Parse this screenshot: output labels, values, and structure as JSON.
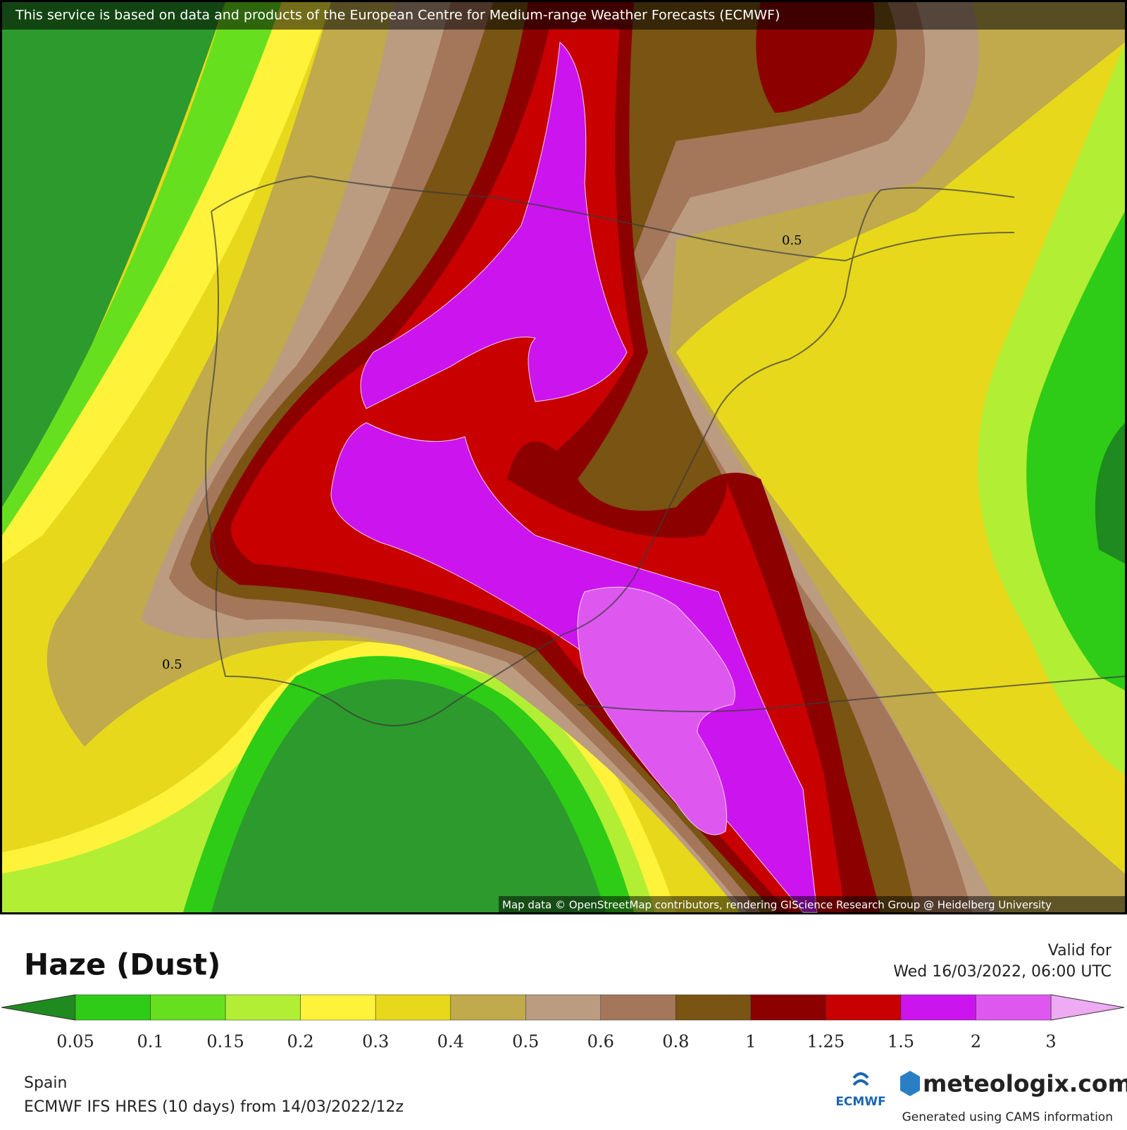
{
  "header": {
    "notice": "This service is based on data and products of the European Centre for Medium-range Weather Forecasts (ECMWF)"
  },
  "map": {
    "attribution": "Map data © OpenStreetMap contributors, rendering GIScience Research Group @ Heidelberg University",
    "contour_labels": [
      "0.5",
      "0.5"
    ]
  },
  "footer": {
    "title": "Haze (Dust)",
    "valid_label": "Valid for",
    "valid_time": "Wed 16/03/2022, 06:00 UTC",
    "region": "Spain",
    "model": "ECMWF IFS HRES (10 days) from 14/03/2022/12z",
    "ecmwf_logo": "ECMWF",
    "brand": "meteologix.com",
    "credit": "Generated using CAMS information"
  },
  "legend": {
    "low_color": "#1f8a1f",
    "high_color": "#eeaaf2",
    "colors": [
      "#2ecc16",
      "#66e01e",
      "#b2ee34",
      "#fff23a",
      "#e8d81c",
      "#c0aa4c",
      "#bb9c80",
      "#a4765a",
      "#7a5412",
      "#8c0000",
      "#c80000",
      "#cc14ee",
      "#de58f0"
    ],
    "labels": [
      "0.05",
      "0.1",
      "0.15",
      "0.2",
      "0.3",
      "0.4",
      "0.5",
      "0.6",
      "0.8",
      "1",
      "1.25",
      "1.5",
      "2",
      "3"
    ]
  }
}
